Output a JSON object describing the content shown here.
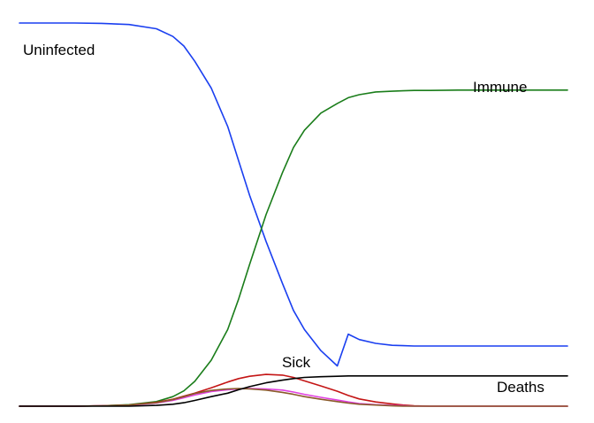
{
  "chart_data": {
    "type": "line",
    "title": "",
    "xlabel": "",
    "ylabel": "",
    "xlim": [
      0,
      100
    ],
    "ylim": [
      0,
      100
    ],
    "grid": false,
    "legend": "none",
    "x": [
      0,
      5,
      10,
      15,
      20,
      25,
      28,
      30,
      32,
      35,
      38,
      40,
      42,
      45,
      48,
      50,
      52,
      55,
      58,
      60,
      62,
      65,
      68,
      70,
      72,
      75,
      80,
      85,
      90,
      95,
      100
    ],
    "series": [
      {
        "name": "Uninfected",
        "color": "#1a3ff0",
        "values": [
          100,
          100,
          100,
          99.9,
          99.6,
          98.5,
          96.5,
          94,
          90,
          83,
          73,
          64,
          55,
          43,
          32,
          25,
          20,
          14.5,
          10.5,
          18.8,
          17.4,
          16.4,
          15.9,
          15.8,
          15.7,
          15.7,
          15.7,
          15.7,
          15.7,
          15.7,
          15.7
        ]
      },
      {
        "name": "Immune",
        "color": "#1a7d1a",
        "values": [
          0,
          0,
          0,
          0.1,
          0.4,
          1.2,
          2.5,
          4,
          6.5,
          12,
          20,
          28,
          37,
          50,
          61,
          67.5,
          72,
          76.5,
          79,
          80.5,
          81.3,
          82,
          82.2,
          82.3,
          82.4,
          82.4,
          82.5,
          82.5,
          82.5,
          82.5,
          82.5
        ]
      },
      {
        "name": "Sick",
        "color": "#c41515",
        "values": [
          0,
          0,
          0,
          0.1,
          0.3,
          1,
          1.8,
          2.6,
          3.4,
          4.8,
          6.3,
          7.2,
          7.8,
          8.3,
          8.1,
          7.5,
          6.6,
          5.3,
          3.9,
          2.8,
          1.9,
          1.1,
          0.6,
          0.3,
          0.1,
          0,
          0,
          0,
          0,
          0,
          0
        ]
      },
      {
        "name": "",
        "color": "#e040e0",
        "values": [
          0,
          0,
          0,
          0.1,
          0.2,
          0.8,
          1.5,
          2.2,
          2.9,
          3.8,
          4.3,
          4.5,
          4.6,
          4.5,
          4.2,
          3.7,
          3.1,
          2.3,
          1.6,
          1.1,
          0.7,
          0.4,
          0.2,
          0.1,
          0,
          0,
          0,
          0,
          0,
          0,
          0
        ]
      },
      {
        "name": "",
        "color": "#8a5a2a",
        "values": [
          0,
          0,
          0,
          0.1,
          0.3,
          0.9,
          1.7,
          2.5,
          3.3,
          4.1,
          4.5,
          4.6,
          4.5,
          4.2,
          3.6,
          3.1,
          2.5,
          1.8,
          1.2,
          0.8,
          0.5,
          0.3,
          0.1,
          0,
          0,
          0,
          0,
          0,
          0,
          0,
          0
        ]
      },
      {
        "name": "Deaths",
        "color": "#000000",
        "values": [
          0,
          0,
          0,
          0,
          0,
          0.2,
          0.5,
          0.9,
          1.5,
          2.5,
          3.4,
          4.3,
          5.1,
          6.1,
          6.8,
          7.2,
          7.5,
          7.7,
          7.8,
          7.9,
          7.9,
          7.9,
          7.9,
          7.9,
          7.9,
          7.9,
          7.9,
          7.9,
          7.9,
          7.9,
          7.9
        ]
      }
    ],
    "annotations": [
      {
        "text": "Uninfected",
        "color": "#000000"
      },
      {
        "text": "Immune",
        "color": "#000000"
      },
      {
        "text": "Sick",
        "color": "#000000"
      },
      {
        "text": "Deaths",
        "color": "#000000"
      }
    ]
  }
}
